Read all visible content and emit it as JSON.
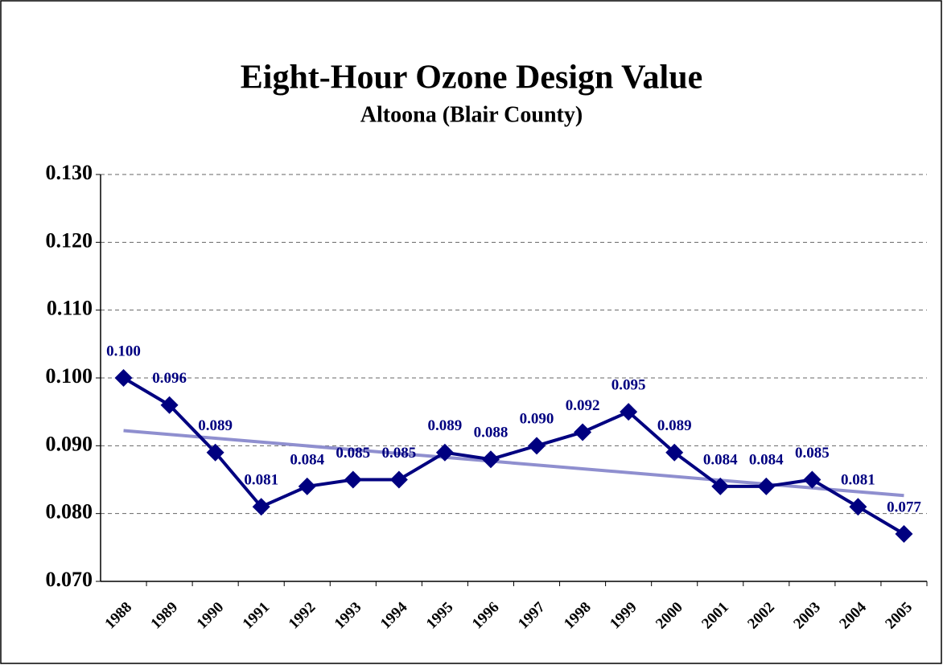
{
  "chart_data": {
    "type": "line",
    "title": "Eight-Hour Ozone Design Value",
    "subtitle": "Altoona (Blair County)",
    "categories": [
      "1988",
      "1989",
      "1990",
      "1991",
      "1992",
      "1993",
      "1994",
      "1995",
      "1996",
      "1997",
      "1998",
      "1999",
      "2000",
      "2001",
      "2002",
      "2003",
      "2004",
      "2005"
    ],
    "series": [
      {
        "name": "Altoona",
        "color": "#000080",
        "values": [
          0.1,
          0.096,
          0.089,
          0.081,
          0.084,
          0.085,
          0.085,
          0.089,
          0.088,
          0.09,
          0.092,
          0.095,
          0.089,
          0.084,
          0.084,
          0.085,
          0.081,
          0.077
        ],
        "value_labels": [
          "0.100",
          "0.096",
          "0.089",
          "0.081",
          "0.084",
          "0.085",
          "0.085",
          "0.089",
          "0.088",
          "0.090",
          "0.092",
          "0.095",
          "0.089",
          "0.084",
          "0.084",
          "0.085",
          "0.081",
          "0.077"
        ]
      }
    ],
    "trendline": {
      "kind": "linear",
      "color": "#8f8fcf"
    },
    "ylim": [
      0.07,
      0.13
    ],
    "yticks": [
      {
        "value": 0.07,
        "label": "0.070"
      },
      {
        "value": 0.08,
        "label": "0.080"
      },
      {
        "value": 0.09,
        "label": "0.090"
      },
      {
        "value": 0.1,
        "label": "0.100"
      },
      {
        "value": 0.11,
        "label": "0.110"
      },
      {
        "value": 0.12,
        "label": "0.120"
      },
      {
        "value": 0.13,
        "label": "0.130"
      }
    ],
    "grid": true
  }
}
